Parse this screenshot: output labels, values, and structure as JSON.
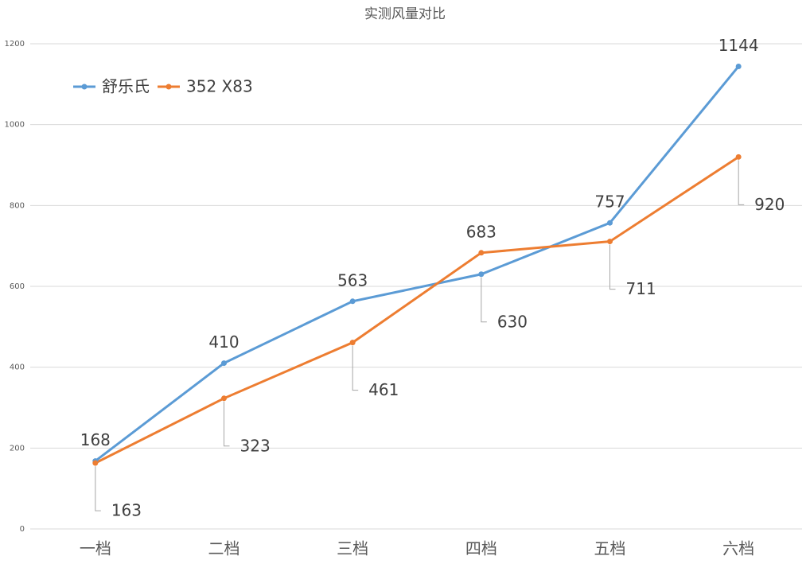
{
  "chart_data": {
    "type": "line",
    "title": "实测风量对比",
    "categories": [
      "一档",
      "二档",
      "三档",
      "四档",
      "五档",
      "六档"
    ],
    "series": [
      {
        "name": "舒乐氏",
        "color": "#5b9bd5",
        "values": [
          168,
          410,
          563,
          630,
          757,
          1144
        ]
      },
      {
        "name": "352 X83",
        "color": "#ed7d31",
        "values": [
          163,
          323,
          461,
          683,
          711,
          920
        ]
      }
    ],
    "ylim": [
      0,
      1200
    ],
    "yticks": [
      0,
      200,
      400,
      600,
      800,
      1000,
      1200
    ],
    "grid": true,
    "legend": "top-left"
  }
}
